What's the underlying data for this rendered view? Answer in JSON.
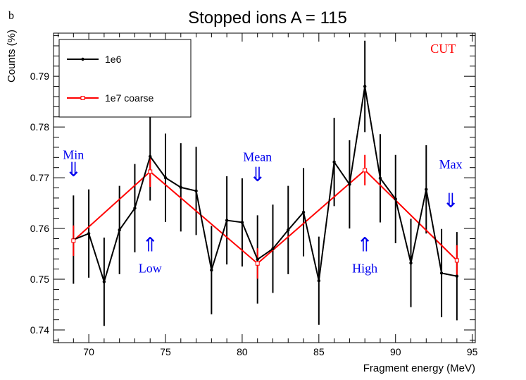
{
  "panel_label": "b",
  "chart_data": {
    "type": "line",
    "title": "Stopped ions A = 115",
    "xlabel": "Fragment energy (MeV)",
    "ylabel": "Counts (%)",
    "xlim": [
      67.7,
      95.2
    ],
    "ylim": [
      0.7375,
      0.7985
    ],
    "x_ticks": [
      70,
      75,
      80,
      85,
      90,
      95
    ],
    "x_tick_labels": [
      "70",
      "75",
      "80",
      "85",
      "90",
      "95"
    ],
    "y_ticks": [
      0.74,
      0.75,
      0.76,
      0.77,
      0.78,
      0.79
    ],
    "y_tick_labels": [
      "0.74",
      "0.75",
      "0.76",
      "0.77",
      "0.78",
      "0.79"
    ],
    "grid": false,
    "legend_position": "top-left",
    "series": [
      {
        "name": "1e6",
        "color": "#000000",
        "marker": "dot",
        "x": [
          69,
          70,
          71,
          72,
          73,
          74,
          75,
          76,
          77,
          78,
          79,
          80,
          81,
          82,
          83,
          84,
          85,
          86,
          87,
          88,
          89,
          90,
          91,
          92,
          93,
          94
        ],
        "y": [
          0.7578,
          0.759,
          0.7495,
          0.7597,
          0.764,
          0.7742,
          0.77,
          0.7681,
          0.7674,
          0.7518,
          0.7616,
          0.7612,
          0.7539,
          0.756,
          0.7597,
          0.7632,
          0.7497,
          0.7731,
          0.7687,
          0.788,
          0.7699,
          0.7658,
          0.7532,
          0.7677,
          0.7512,
          0.7506
        ],
        "err": [
          0.0087,
          0.0087,
          0.0087,
          0.0087,
          0.0087,
          0.0087,
          0.0087,
          0.0087,
          0.0087,
          0.0087,
          0.0087,
          0.0087,
          0.0087,
          0.0087,
          0.0087,
          0.0087,
          0.0087,
          0.0087,
          0.0087,
          0.009,
          0.0087,
          0.0087,
          0.0087,
          0.0087,
          0.0087,
          0.0087
        ]
      },
      {
        "name": "1e7 coarse",
        "color": "#ff0000",
        "marker": "open-square",
        "x": [
          69,
          74,
          81,
          88,
          94
        ],
        "y": [
          0.7576,
          0.7712,
          0.7531,
          0.7715,
          0.7537
        ],
        "err": [
          0.003,
          0.003,
          0.003,
          0.003,
          0.003
        ]
      }
    ],
    "annotations": [
      {
        "text": "CUT",
        "color": "#ff0000",
        "x": 93.1,
        "y": 0.7946
      },
      {
        "text": "Min",
        "arrow": "⇓",
        "color": "#0000ee",
        "x": 69,
        "y_text": 0.7737,
        "y_arrow": 0.7703
      },
      {
        "text": "Low",
        "arrow": "⇑",
        "color": "#0000ee",
        "x": 74,
        "y_text": 0.7513,
        "y_arrow": 0.7555
      },
      {
        "text": "Mean",
        "arrow": "⇓",
        "color": "#0000ee",
        "x": 81,
        "y_text": 0.7733,
        "y_arrow": 0.7693
      },
      {
        "text": "High",
        "arrow": "⇑",
        "color": "#0000ee",
        "x": 88,
        "y_text": 0.7513,
        "y_arrow": 0.7555
      },
      {
        "text": "Max",
        "arrow": "⇓",
        "color": "#0000ee",
        "x": 93.6,
        "y_text": 0.7718,
        "y_arrow": 0.7642
      }
    ]
  }
}
